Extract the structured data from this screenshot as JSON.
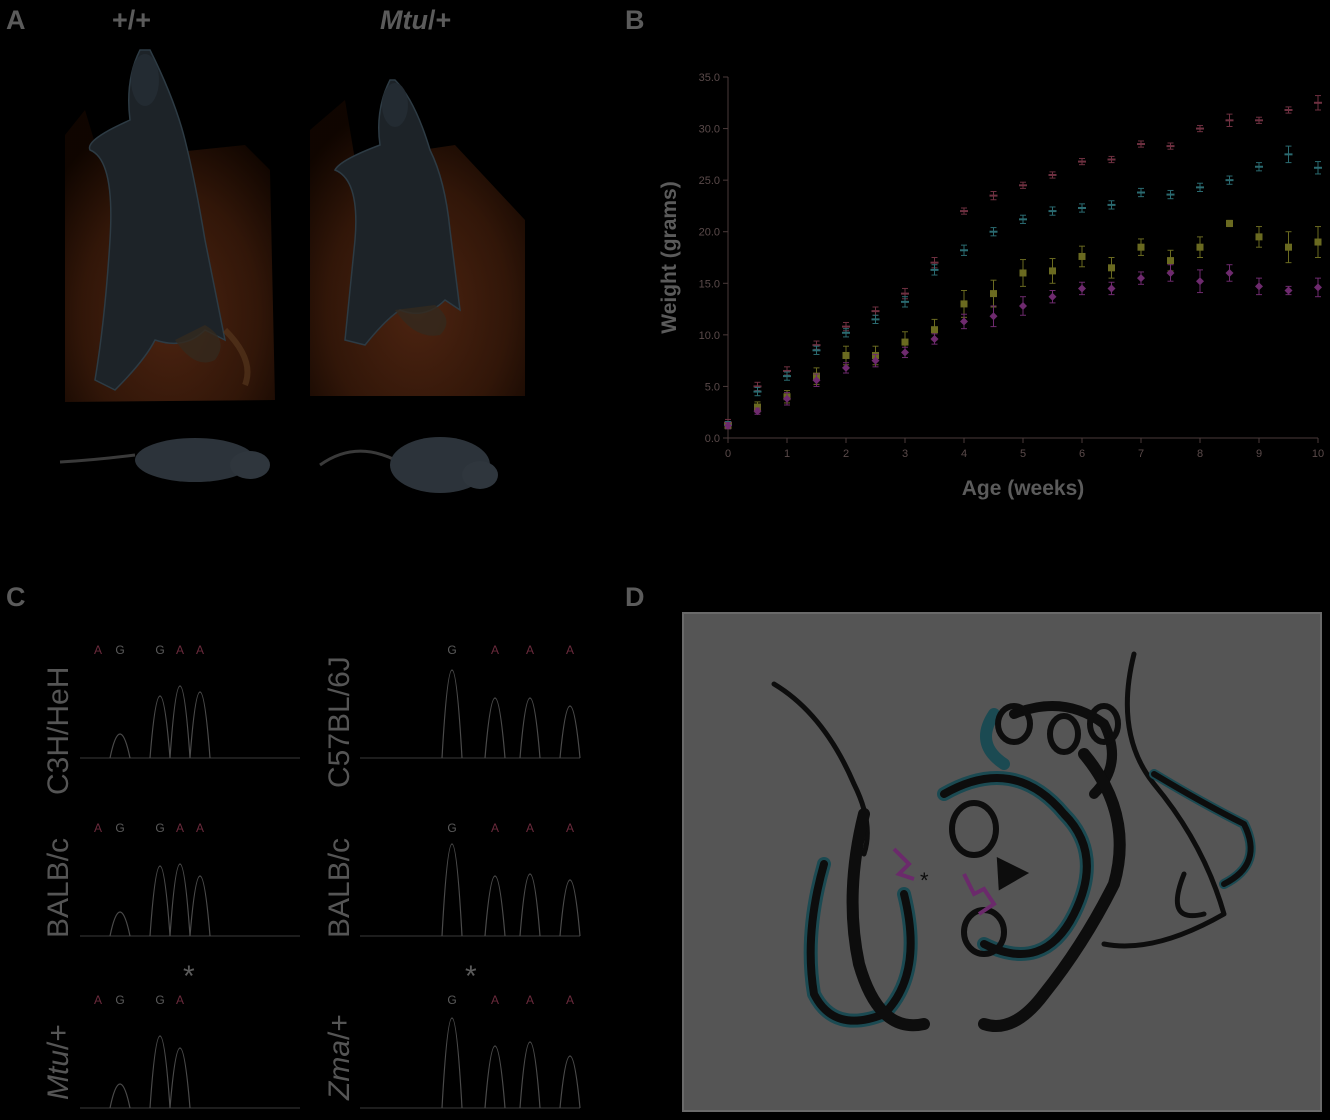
{
  "panels": {
    "a": {
      "letter": "A",
      "geno_wt": "+/+",
      "geno_mut_italic": "Mtu",
      "geno_mut_suffix": "/+"
    },
    "b": {
      "letter": "B"
    },
    "c": {
      "letter": "C",
      "left": [
        {
          "strain": "C3H/HeH",
          "italic": false,
          "bases": [
            "A",
            "G",
            "G",
            "A",
            "A"
          ]
        },
        {
          "strain": "BALB/c",
          "italic": false,
          "bases": [
            "A",
            "G",
            "G",
            "A",
            "A"
          ]
        },
        {
          "strain_italic": "Mtu",
          "strain_suffix": "/+",
          "italic": true,
          "bases": [
            "A",
            "G",
            "G",
            "A"
          ]
        }
      ],
      "right": [
        {
          "strain": "C57BL/6J",
          "italic": false,
          "bases": [
            "G",
            "A",
            "A",
            "A"
          ]
        },
        {
          "strain": "BALB/c",
          "italic": false,
          "bases": [
            "G",
            "A",
            "A",
            "A"
          ]
        },
        {
          "strain_italic": "Zma",
          "strain_suffix": "/+",
          "italic": true,
          "bases": [
            "G",
            "A",
            "A",
            "A"
          ]
        }
      ],
      "star": "*"
    },
    "d": {
      "letter": "D",
      "marker": "*"
    }
  },
  "chart_data": {
    "type": "scatter",
    "xlabel": "Age (weeks)",
    "ylabel": "Weight (grams)",
    "xlim": [
      0,
      10
    ],
    "ylim": [
      0,
      35
    ],
    "x_ticks": [
      "0",
      "1",
      "2",
      "3",
      "4",
      "5",
      "6",
      "7",
      "8",
      "9",
      "10"
    ],
    "y_ticks": [
      "0.0",
      "5.0",
      "10.0",
      "15.0",
      "20.0",
      "25.0",
      "30.0",
      "35.0"
    ],
    "x": [
      0,
      0.5,
      1,
      1.5,
      2,
      2.5,
      3,
      3.5,
      4,
      4.5,
      5,
      5.5,
      6,
      6.5,
      7,
      7.5,
      8,
      8.5,
      9,
      9.5,
      10
    ],
    "series": [
      {
        "color": "#6e3040",
        "marker": "dash",
        "values": [
          1.5,
          5.0,
          6.5,
          9.0,
          10.8,
          12.3,
          14.0,
          17.0,
          22.0,
          23.5,
          24.5,
          25.5,
          26.8,
          27.0,
          28.5,
          28.3,
          30.0,
          30.8,
          30.8,
          31.8,
          32.5
        ],
        "err": [
          0.3,
          0.4,
          0.4,
          0.4,
          0.4,
          0.4,
          0.5,
          0.5,
          0.3,
          0.4,
          0.3,
          0.3,
          0.3,
          0.3,
          0.3,
          0.3,
          0.3,
          0.6,
          0.3,
          0.3,
          0.7
        ]
      },
      {
        "color": "#2a6a70",
        "marker": "dash",
        "values": [
          1.3,
          4.5,
          6.0,
          8.5,
          10.2,
          11.5,
          13.2,
          16.3,
          18.2,
          20.0,
          21.2,
          22.0,
          22.3,
          22.6,
          23.8,
          23.6,
          24.3,
          25.0,
          26.3,
          27.5,
          26.2
        ],
        "err": [
          0.3,
          0.4,
          0.4,
          0.4,
          0.4,
          0.4,
          0.5,
          0.5,
          0.5,
          0.4,
          0.4,
          0.4,
          0.4,
          0.4,
          0.4,
          0.4,
          0.4,
          0.4,
          0.4,
          0.8,
          0.6
        ]
      },
      {
        "color": "#6a6a20",
        "marker": "square",
        "values": [
          1.2,
          3.0,
          4.0,
          6.0,
          8.0,
          8.0,
          9.3,
          10.5,
          13.0,
          14.0,
          16.0,
          16.2,
          17.6,
          16.5,
          18.5,
          17.2,
          18.5,
          20.8,
          19.5,
          18.5,
          19.0
        ],
        "err": [
          0.3,
          0.5,
          0.6,
          0.8,
          0.9,
          0.9,
          1.0,
          1.0,
          1.3,
          1.3,
          1.3,
          1.2,
          1.0,
          1.0,
          0.8,
          1.0,
          1.0,
          0.3,
          1.0,
          1.5,
          1.5
        ]
      },
      {
        "color": "#6e2a6e",
        "marker": "diamond",
        "values": [
          1.2,
          2.6,
          3.8,
          5.6,
          6.8,
          7.5,
          8.3,
          9.6,
          11.3,
          11.8,
          12.8,
          13.7,
          14.5,
          14.5,
          15.5,
          16.0,
          15.2,
          16.0,
          14.7,
          14.3,
          14.6
        ],
        "err": [
          0.3,
          0.3,
          0.6,
          0.6,
          0.5,
          0.6,
          0.5,
          0.5,
          0.7,
          1.0,
          0.9,
          0.6,
          0.6,
          0.6,
          0.6,
          0.8,
          1.1,
          0.8,
          0.8,
          0.4,
          0.9
        ]
      }
    ]
  }
}
